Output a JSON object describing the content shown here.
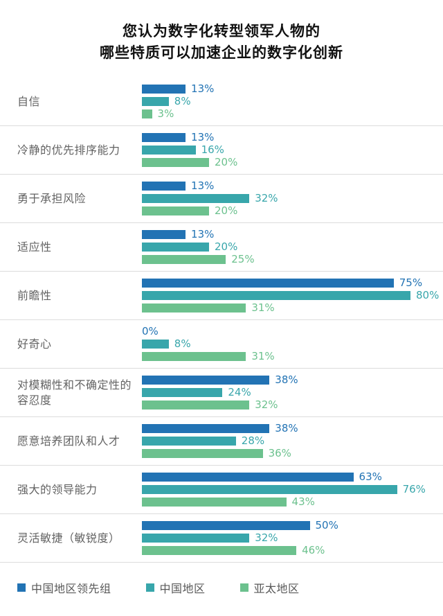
{
  "title": {
    "line1": "您认为数字化转型领军人物的",
    "line2": "哪些特质可以加速企业的数字化创新"
  },
  "chart_data": {
    "type": "bar",
    "orientation": "horizontal",
    "unit": "%",
    "value_range": [
      0,
      100
    ],
    "grid": false,
    "legend_position": "bottom",
    "categories": [
      "自信",
      "冷静的优先排序能力",
      "勇于承担风险",
      "适应性",
      "前瞻性",
      "好奇心",
      "对模糊性和不确定性的容忍度",
      "愿意培养团队和人才",
      "强大的领导能力",
      "灵活敏捷（敏锐度）"
    ],
    "series": [
      {
        "name": "中国地区领先组",
        "color": "#2273B4",
        "values": [
          13,
          13,
          13,
          13,
          75,
          0,
          38,
          38,
          63,
          50
        ]
      },
      {
        "name": "中国地区",
        "color": "#38A6AB",
        "values": [
          8,
          16,
          32,
          20,
          80,
          8,
          24,
          28,
          76,
          32
        ]
      },
      {
        "name": "亚太地区",
        "color": "#6CC18E",
        "values": [
          3,
          20,
          20,
          25,
          31,
          31,
          32,
          36,
          43,
          46
        ]
      }
    ]
  },
  "legend": {
    "items": [
      {
        "label": "中国地区领先组",
        "color": "#2273B4"
      },
      {
        "label": "中国地区",
        "color": "#38A6AB"
      },
      {
        "label": "亚太地区",
        "color": "#6CC18E"
      }
    ]
  },
  "colors": {
    "series1": "#2273B4",
    "series2": "#38A6AB",
    "series3": "#6CC18E",
    "title_text": "#111111",
    "label_text": "#636363",
    "separator": "#DBDBDB",
    "background": "#FFFFFF"
  }
}
